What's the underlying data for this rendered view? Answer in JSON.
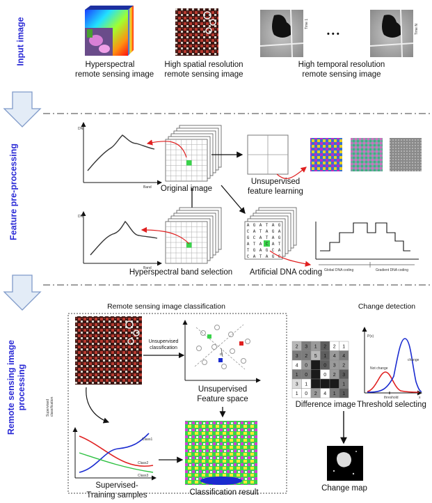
{
  "side_labels": {
    "input": "Input image",
    "preprocess": "Feature pre-processing",
    "processing_line1": "Remote sensing image",
    "processing_line2": "processing"
  },
  "input_images": [
    {
      "line1": "Hyperspectral",
      "line2": "remote sensing image"
    },
    {
      "line1": "High spatial resolution",
      "line2": "remote sensing image"
    },
    {
      "line1": "High temporal resolution",
      "line2": "remote sensing image"
    }
  ],
  "time_labels": {
    "first": "Time 1",
    "last": "Time N",
    "ellipsis": "• • •"
  },
  "preprocessing": {
    "original_image": "Original image",
    "unsupervised_line1": "Unsupervised",
    "unsupervised_line2": "feature learning",
    "band_selection": "Hyperspectral band selection",
    "dna_coding": "Artificial DNA coding",
    "dna_letters": [
      [
        "A",
        "G",
        "A",
        "T",
        "A",
        "G"
      ],
      [
        "C",
        "A",
        "T",
        "A",
        "G",
        "A"
      ],
      [
        "G",
        "C",
        "A",
        "T",
        "A",
        "G"
      ],
      [
        "A",
        "T",
        "A",
        "C",
        "A",
        "T"
      ],
      [
        "T",
        "G",
        "A",
        "G",
        "C",
        "A"
      ],
      [
        "C",
        "A",
        "T",
        "A",
        "G",
        "C"
      ]
    ],
    "global_dna": "Global DNA coding",
    "gradient_dna": "Gradient DNA coding",
    "axis_dn": "DN",
    "axis_band": "Band"
  },
  "classification": {
    "title": "Remote sensing image classification",
    "unsup_class_line1": "Unsupervised",
    "unsup_class_line2": "classification",
    "feature_space_line1": "Unsupervised",
    "feature_space_line2": "Feature space",
    "supervised_class_line1": "Supervised",
    "supervised_class_line2": "classification",
    "training_line1": "Supervised-",
    "training_line2": "Training samples",
    "result": "Classification result",
    "class1": "Class1",
    "class2": "Class2",
    "class3": "Class3",
    "d_label": "d"
  },
  "change_detection": {
    "title": "Change detection",
    "difference_image": "Difference image",
    "threshold": "Threshold selecting",
    "change_map": "Change map",
    "not_change": "Not change",
    "change": "change",
    "threshold_tick": "threshold",
    "px_axis": "P(x)",
    "x_axis": "x",
    "diff_grid": [
      [
        "2",
        "3",
        "1",
        "2",
        "2",
        "1"
      ],
      [
        "3",
        "2",
        "5",
        "1",
        "4",
        "4"
      ],
      [
        "4",
        "0",
        "",
        "0",
        "3",
        "2"
      ],
      [
        "1",
        "0",
        "",
        "0",
        "2",
        "3"
      ],
      [
        "3",
        "1",
        "",
        "",
        "",
        "1"
      ],
      [
        "1",
        "0",
        "2",
        "4",
        "1",
        "1"
      ]
    ]
  },
  "colors": {
    "side_label": "#2b2bd6",
    "arrow_fill": "#e3ecf7",
    "arrow_stroke": "#7f9ac9",
    "red_arrow": "#e02020",
    "green_pixel": "#39d34a"
  }
}
